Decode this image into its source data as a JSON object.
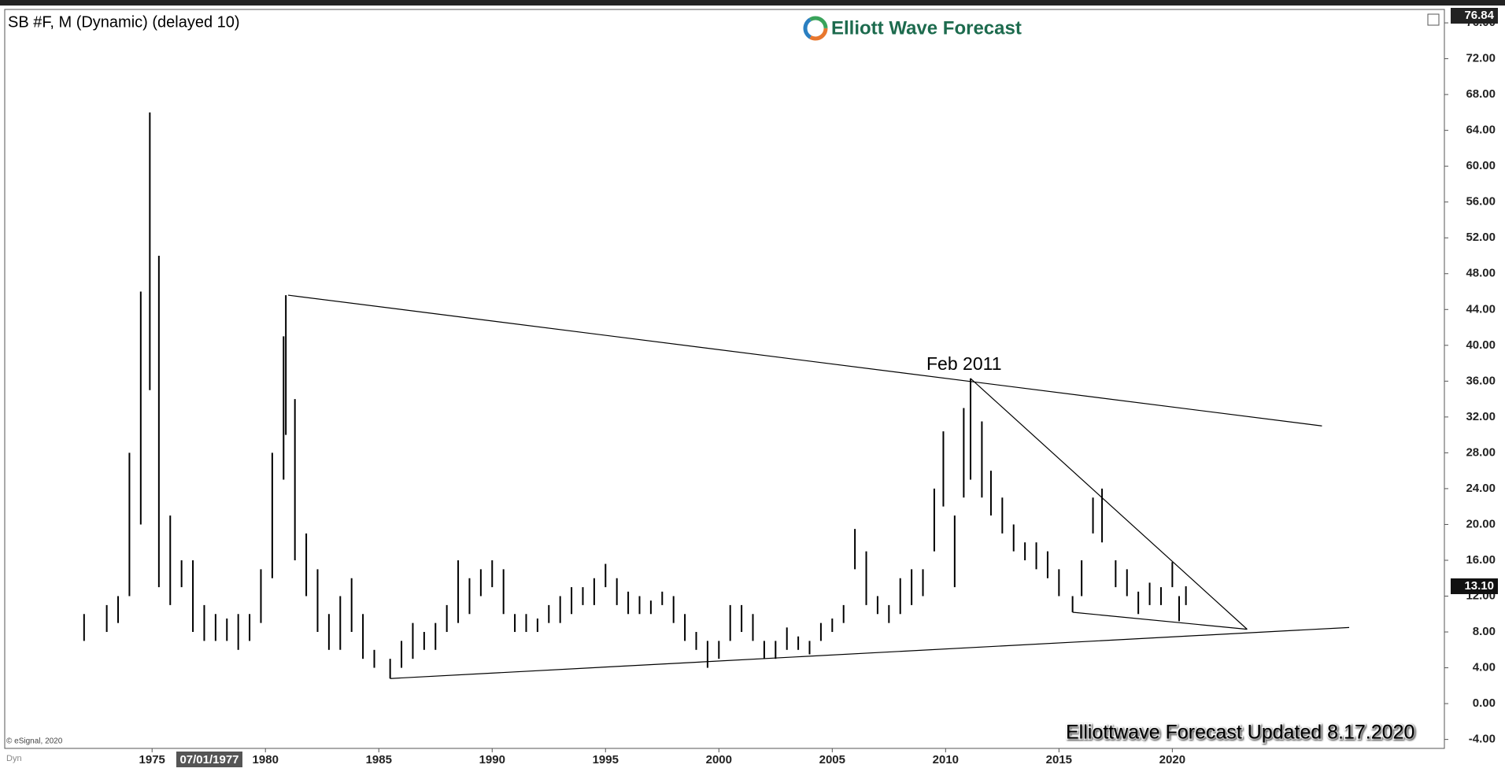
{
  "chart_data": {
    "type": "range-bar",
    "title": "SB #F, M (Dynamic) (delayed 10)",
    "brand": "Elliott Wave Forecast",
    "footer": "Elliottwave Forecast Updated 8.17.2020",
    "copyright": "© eSignal, 2020",
    "mode_label": "Dyn",
    "cursor_label": "07/01/1977",
    "annotation": "Feb 2011",
    "color": "#000000",
    "xlim": [
      1968.5,
      2032
    ],
    "ylim": [
      -5,
      76.84
    ],
    "xticks": [
      1975,
      1980,
      1985,
      1990,
      1995,
      2000,
      2005,
      2010,
      2015,
      2020
    ],
    "yticks": [
      {
        "value": -4,
        "label": "-4.00"
      },
      {
        "value": 0,
        "label": "0.00"
      },
      {
        "value": 4,
        "label": "4.00"
      },
      {
        "value": 8,
        "label": "8.00"
      },
      {
        "value": 12,
        "label": "12.00"
      },
      {
        "value": 16,
        "label": "16.00"
      },
      {
        "value": 20,
        "label": "20.00"
      },
      {
        "value": 24,
        "label": "24.00"
      },
      {
        "value": 28,
        "label": "28.00"
      },
      {
        "value": 32,
        "label": "32.00"
      },
      {
        "value": 36,
        "label": "36.00"
      },
      {
        "value": 40,
        "label": "40.00"
      },
      {
        "value": 44,
        "label": "44.00"
      },
      {
        "value": 48,
        "label": "48.00"
      },
      {
        "value": 52,
        "label": "52.00"
      },
      {
        "value": 56,
        "label": "56.00"
      },
      {
        "value": 60,
        "label": "60.00"
      },
      {
        "value": 64,
        "label": "64.00"
      },
      {
        "value": 68,
        "label": "68.00"
      },
      {
        "value": 72,
        "label": "72.00"
      },
      {
        "value": 76,
        "label": "76.00"
      }
    ],
    "last_price": {
      "value": 13.1,
      "label": "13.10"
    },
    "x": [
      1972,
      1973,
      1973.5,
      1974,
      1974.5,
      1974.9,
      1975.3,
      1975.8,
      1976.3,
      1976.8,
      1977.3,
      1977.8,
      1978.3,
      1978.8,
      1979.3,
      1979.8,
      1980.3,
      1980.8,
      1980.9,
      1981.3,
      1981.8,
      1982.3,
      1982.8,
      1983.3,
      1983.8,
      1984.3,
      1984.8,
      1985.5,
      1986,
      1986.5,
      1987,
      1987.5,
      1988,
      1988.5,
      1989,
      1989.5,
      1990,
      1990.5,
      1991,
      1991.5,
      1992,
      1992.5,
      1993,
      1993.5,
      1994,
      1994.5,
      1995,
      1995.5,
      1996,
      1996.5,
      1997,
      1997.5,
      1998,
      1998.5,
      1999,
      1999.5,
      2000,
      2000.5,
      2001,
      2001.5,
      2002,
      2002.5,
      2003,
      2003.5,
      2004,
      2004.5,
      2005,
      2005.5,
      2006,
      2006.5,
      2007,
      2007.5,
      2008,
      2008.5,
      2009,
      2009.5,
      2009.9,
      2010.4,
      2010.8,
      2011.1,
      2011.6,
      2012,
      2012.5,
      2013,
      2013.5,
      2014,
      2014.5,
      2015,
      2015.6,
      2016,
      2016.5,
      2016.9,
      2017.5,
      2018,
      2018.5,
      2019,
      2019.5,
      2020,
      2020.3,
      2020.6
    ],
    "high": [
      10,
      11,
      12,
      28,
      46,
      66,
      50,
      21,
      16,
      16,
      11,
      10,
      9.5,
      10,
      10,
      15,
      28,
      41,
      45.6,
      34,
      19,
      15,
      10,
      12,
      14,
      10,
      6,
      5,
      7,
      9,
      8,
      9,
      11,
      16,
      14,
      15,
      16,
      15,
      10,
      10,
      9.5,
      11,
      12,
      13,
      13,
      14,
      15.6,
      14,
      12.5,
      12,
      11.5,
      12.5,
      12,
      10,
      8,
      7,
      7,
      11,
      11,
      10,
      7,
      7,
      8.5,
      7.5,
      7,
      9,
      9.5,
      11,
      19.5,
      17,
      12,
      11,
      14,
      15,
      15,
      24,
      30.4,
      21,
      33,
      36.3,
      31.5,
      26,
      23,
      20,
      18,
      18,
      17,
      15,
      12,
      16,
      23,
      24,
      16,
      15,
      12.5,
      13.5,
      13,
      15.8,
      12,
      13.1
    ],
    "low": [
      7,
      8,
      9,
      12,
      20,
      35,
      13,
      11,
      13,
      8,
      7,
      7,
      7,
      6,
      7,
      9,
      14,
      25,
      30,
      16,
      12,
      8,
      6,
      6,
      8,
      5,
      4,
      2.8,
      4,
      5,
      6,
      6,
      8,
      9,
      10,
      12,
      13,
      10,
      8,
      8,
      8,
      9,
      9,
      10,
      11,
      11,
      13,
      11,
      10,
      10,
      10,
      11,
      9,
      7,
      6,
      4,
      5,
      7,
      8,
      7,
      5,
      5,
      6,
      6,
      5.5,
      7,
      8,
      9,
      15,
      11,
      10,
      9,
      10,
      11,
      12,
      17,
      22,
      13,
      23,
      25,
      23,
      21,
      19,
      17,
      16,
      15,
      14,
      12,
      10.2,
      12,
      19,
      18,
      13,
      12,
      10,
      11,
      11,
      13,
      9.2,
      11
    ],
    "trendlines": [
      {
        "x": [
          1981.0,
          2026.6
        ],
        "y": [
          45.6,
          31.0
        ]
      },
      {
        "x": [
          1985.5,
          2027.8
        ],
        "y": [
          2.8,
          8.5
        ]
      },
      {
        "x": [
          2011.1,
          2023.3
        ],
        "y": [
          36.3,
          8.3
        ]
      },
      {
        "x": [
          2015.6,
          2023.3
        ],
        "y": [
          10.2,
          8.3
        ]
      }
    ]
  }
}
